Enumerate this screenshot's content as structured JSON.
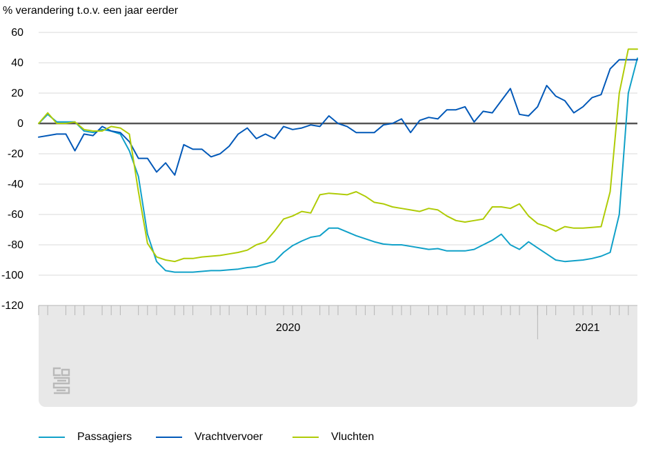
{
  "chart_data": {
    "type": "line",
    "ylabel": "% verandering t.o.v. een jaar eerder",
    "ylim": [
      -120,
      60
    ],
    "yticks": [
      60,
      40,
      20,
      0,
      -20,
      -40,
      -60,
      -80,
      -100,
      -120
    ],
    "grid": true,
    "legend_position": "bottom",
    "x_period_labels": [
      "2020",
      "2021"
    ],
    "x_points": 67,
    "x_weeks_in_2020": 55,
    "series": [
      {
        "name": "Passagiers",
        "color": "#0fa0c8",
        "values": [
          0,
          6,
          1,
          1,
          1,
          -5,
          -6,
          -4,
          -5,
          -7,
          -18,
          -35,
          -73,
          -91,
          -97,
          -98,
          -98,
          -98,
          -97.5,
          -97,
          -97,
          -96.5,
          -96,
          -95,
          -94.5,
          -92.5,
          -91,
          -85,
          -80.5,
          -77.5,
          -75,
          -74,
          -69,
          -69,
          -71.5,
          -74,
          -76,
          -78,
          -79.5,
          -80,
          -80,
          -81,
          -82,
          -83,
          -82.5,
          -84,
          -84,
          -84,
          -83,
          -80,
          -77,
          -73,
          -80,
          -83,
          -78,
          -82,
          -86,
          -90,
          -91,
          -90.5,
          -90,
          -89,
          -87.5,
          -85,
          -60,
          20,
          43
        ]
      },
      {
        "name": "Vrachtvervoer",
        "color": "#0058b8",
        "values": [
          -9,
          -8,
          -7,
          -7,
          -18,
          -7,
          -8,
          -2,
          -5,
          -6,
          -12,
          -23,
          -23,
          -32,
          -26,
          -34,
          -14,
          -17,
          -17,
          -22,
          -20,
          -15,
          -7,
          -3,
          -10,
          -7,
          -10,
          -2,
          -4,
          -3,
          -1,
          -2,
          5,
          0,
          -2,
          -6,
          -6,
          -6,
          -1,
          0,
          3,
          -6,
          2,
          4,
          3,
          9,
          9,
          11,
          1,
          8,
          7,
          15,
          23,
          6,
          5,
          11,
          25,
          18,
          15,
          7,
          11,
          17,
          19,
          36,
          42,
          42,
          42
        ]
      },
      {
        "name": "Vluchten",
        "color": "#afcb05",
        "values": [
          0,
          7,
          0,
          0,
          1,
          -4,
          -5,
          -5,
          -2,
          -3,
          -7,
          -45,
          -79,
          -88,
          -90,
          -91,
          -89,
          -89,
          -88,
          -87.5,
          -87,
          -86,
          -85,
          -83.5,
          -80,
          -78,
          -71,
          -63,
          -61,
          -58,
          -59,
          -47,
          -46,
          -46.5,
          -47,
          -45,
          -48,
          -52,
          -53,
          -55,
          -56,
          -57,
          -58,
          -56,
          -57,
          -61,
          -64,
          -65,
          -64,
          -63,
          -55,
          -55,
          -56,
          -53,
          -61,
          -66,
          -68,
          -71,
          -68,
          -69,
          -69,
          -68.5,
          -68,
          -45,
          20,
          49,
          49
        ]
      }
    ]
  }
}
